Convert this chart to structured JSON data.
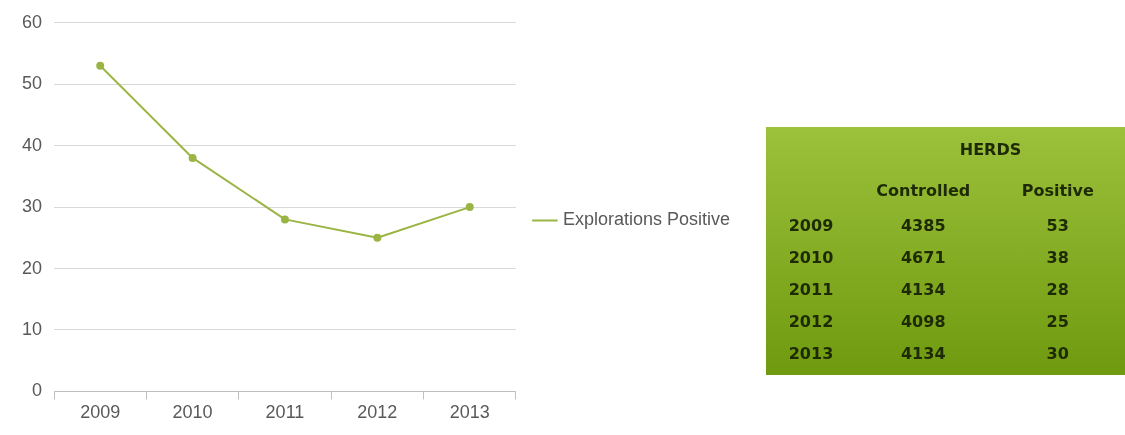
{
  "chart_data": [
    {
      "type": "line",
      "categories": [
        "2009",
        "2010",
        "2011",
        "2012",
        "2013"
      ],
      "series": [
        {
          "name": "Explorations Positive",
          "color": "#9bb545",
          "values": [
            53,
            38,
            28,
            25,
            30
          ]
        }
      ],
      "ylim": [
        0,
        60
      ],
      "yticks": [
        0,
        10,
        20,
        30,
        40,
        50,
        60
      ],
      "grid": "y",
      "legend": "right",
      "marker": "circle"
    },
    {
      "type": "heatmap",
      "title": "HERDS",
      "categories": [
        "Controlled",
        "Positive"
      ],
      "y_categories": [
        "2009",
        "2010",
        "2011",
        "2012",
        "2013"
      ],
      "cells": [
        [
          4385,
          53
        ],
        [
          4671,
          38
        ],
        [
          4134,
          28
        ],
        [
          4098,
          25
        ],
        [
          4134,
          30
        ]
      ],
      "data_labels": true
    }
  ]
}
